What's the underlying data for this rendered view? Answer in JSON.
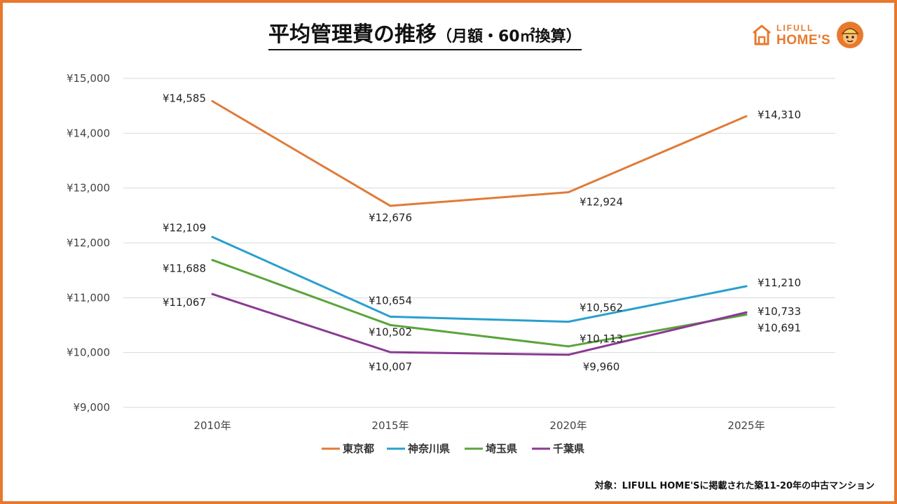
{
  "header": {
    "title_main": "平均管理費の推移",
    "title_sub": "（月額・60㎡換算）"
  },
  "logo": {
    "top_text": "LIFULL",
    "bottom_text": "HOME'S",
    "icon": "house-icon",
    "mascot": "mascot-icon"
  },
  "footnote": "対象：LIFULL HOME'Sに掲載された築11-20年の中古マンション",
  "colors": {
    "frame": "#e8792e",
    "tokyo": "#e07b39",
    "kanagawa": "#2a9fce",
    "saitama": "#5aa43a",
    "chiba": "#8a3a93"
  },
  "chart_data": {
    "type": "line",
    "title": "平均管理費の推移（月額・60㎡換算）",
    "categories": [
      "2010年",
      "2015年",
      "2020年",
      "2025年"
    ],
    "ylim": [
      9000,
      15000
    ],
    "yticks": [
      9000,
      10000,
      11000,
      12000,
      13000,
      14000,
      15000
    ],
    "ytick_labels": [
      "¥9,000",
      "¥10,000",
      "¥11,000",
      "¥12,000",
      "¥13,000",
      "¥14,000",
      "¥15,000"
    ],
    "grid": true,
    "legend_position": "bottom",
    "series": [
      {
        "name": "東京都",
        "color": "#e07b39",
        "values": [
          14585,
          12676,
          12924,
          14310
        ],
        "labels": [
          "¥14,585",
          "¥12,676",
          "¥12,924",
          "¥14,310"
        ]
      },
      {
        "name": "神奈川県",
        "color": "#2a9fce",
        "values": [
          12109,
          10654,
          10562,
          11210
        ],
        "labels": [
          "¥12,109",
          "¥10,654",
          "¥10,562",
          "¥11,210"
        ]
      },
      {
        "name": "埼玉県",
        "color": "#5aa43a",
        "values": [
          11688,
          10502,
          10113,
          10691
        ],
        "labels": [
          "¥11,688",
          "¥10,502",
          "¥10,113",
          "¥10,691"
        ]
      },
      {
        "name": "千葉県",
        "color": "#8a3a93",
        "values": [
          11067,
          10007,
          9960,
          10733
        ],
        "labels": [
          "¥11,067",
          "¥10,007",
          "¥9,960",
          "¥10,733"
        ]
      }
    ]
  }
}
